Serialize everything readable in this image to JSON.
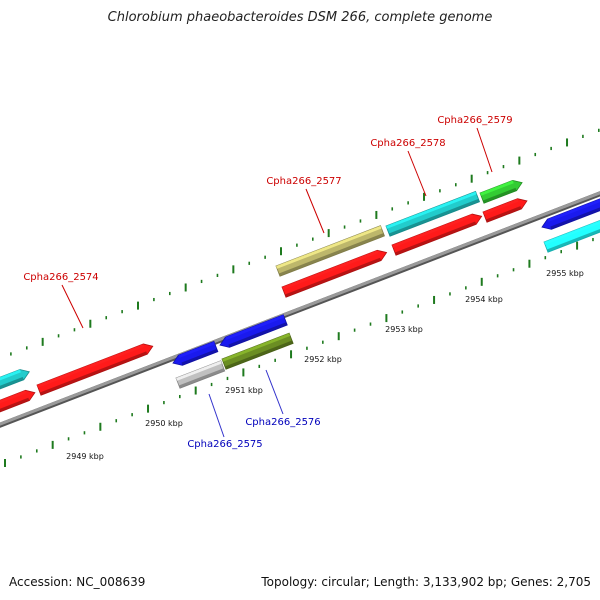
{
  "title": "Chlorobium phaeobacteroides DSM 266, complete genome",
  "footer": {
    "accession": "Accession: NC_008639",
    "topology": "Topology: circular; Length: 3,133,902 bp; Genes: 2,705"
  },
  "colors": {
    "backbone": "#808080",
    "tick": "#1e7a1e",
    "label_forward_strand": "#cc0000",
    "label_reverse_strand": "#0000bb",
    "leader_forward": "#cc0000",
    "leader_reverse": "#3333cc",
    "red_gene": "#ff1a1a",
    "blue_gene": "#1a1aee",
    "cyan_gene": "#22cccc",
    "bright_cyan_gene": "#22ffff",
    "khaki_gene": "#bdb76b",
    "olive_gene": "#6b8e23",
    "green_gene": "#33cc33",
    "grey_gene": "#c0c0c0"
  },
  "ruler": {
    "unit": "kbp",
    "labels": [
      "2949 kbp",
      "2950 kbp",
      "2951 kbp",
      "2952 kbp",
      "2953 kbp",
      "2954 kbp",
      "2955 kbp"
    ]
  },
  "genes": [
    {
      "id": "Cpha266_2574",
      "strand": "forward",
      "labeled": true
    },
    {
      "id": "Cpha266_2575",
      "strand": "reverse",
      "labeled": true
    },
    {
      "id": "Cpha266_2576",
      "strand": "reverse",
      "labeled": true
    },
    {
      "id": "Cpha266_2577",
      "strand": "forward",
      "labeled": true
    },
    {
      "id": "Cpha266_2578",
      "strand": "forward",
      "labeled": true
    },
    {
      "id": "Cpha266_2579",
      "strand": "forward",
      "labeled": true
    }
  ]
}
